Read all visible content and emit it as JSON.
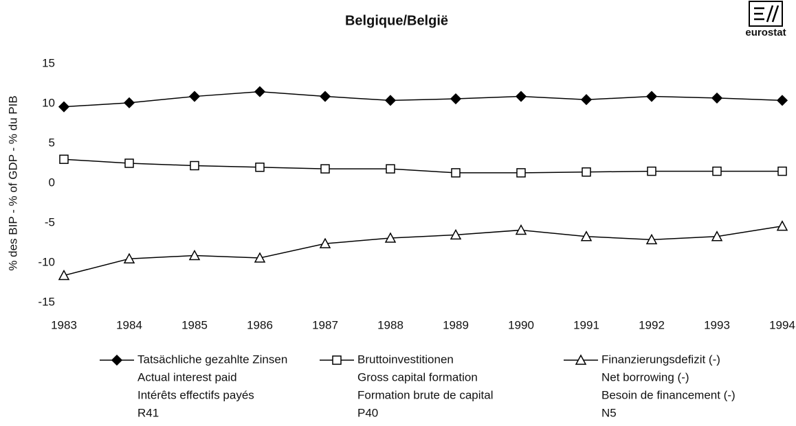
{
  "chart_data": {
    "type": "line",
    "title": "Belgique/België",
    "logo_text": "eurostat",
    "y_label": "% des BIP - % of GDP - % du PIB",
    "categories": [
      "1983",
      "1984",
      "1985",
      "1986",
      "1987",
      "1988",
      "1989",
      "1990",
      "1991",
      "1992",
      "1993",
      "1994"
    ],
    "ylim": [
      -15,
      15
    ],
    "yticks": [
      -15,
      -10,
      -5,
      0,
      5,
      10,
      15
    ],
    "grid": false,
    "series": [
      {
        "name": "Tatsächliche gezahlte Zinsen",
        "labels": [
          "Actual interest paid",
          "Intérêts effectifs payés",
          "R41"
        ],
        "color": "#000000",
        "marker": "diamond",
        "values": [
          9.6,
          10.1,
          10.9,
          11.5,
          10.9,
          10.4,
          10.6,
          10.9,
          10.5,
          10.9,
          10.7,
          10.4
        ]
      },
      {
        "name": "Bruttoinvestitionen",
        "labels": [
          "Gross capital formation",
          "Formation brute de capital",
          "P40"
        ],
        "color": "#000000",
        "marker": "square",
        "values": [
          3.0,
          2.5,
          2.2,
          2.0,
          1.8,
          1.8,
          1.3,
          1.3,
          1.4,
          1.5,
          1.5,
          1.5
        ]
      },
      {
        "name": "Finanzierungsdefizit (-)",
        "labels": [
          "Net borrowing (-)",
          "Besoin de financement (-)",
          "N5"
        ],
        "color": "#000000",
        "marker": "triangle",
        "values": [
          -11.6,
          -9.5,
          -9.1,
          -9.4,
          -7.6,
          -6.9,
          -6.5,
          -5.9,
          -6.7,
          -7.1,
          -6.7,
          -5.4
        ]
      }
    ]
  }
}
